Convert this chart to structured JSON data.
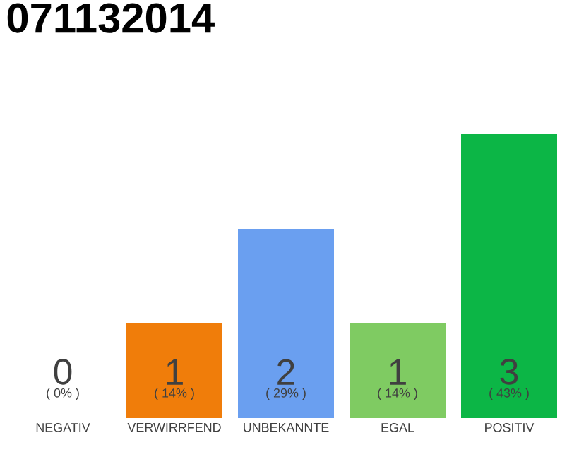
{
  "chart_data": {
    "type": "bar",
    "title": "071132014",
    "categories": [
      "NEGATIV",
      "VERWIRRFEND",
      "UNBEKANNTE",
      "EGAL",
      "POSITIV"
    ],
    "values": [
      0,
      1,
      2,
      1,
      3
    ],
    "colors": [
      "#9e9e9e",
      "#f07d0a",
      "#6a9ff0",
      "#7fcb62",
      "#0cb646"
    ],
    "data_labels": true,
    "tick_labels": "x",
    "annotations": [
      "( 0% )",
      "( 14% )",
      "( 29% )",
      "( 14% )",
      "( 43% )"
    ]
  }
}
